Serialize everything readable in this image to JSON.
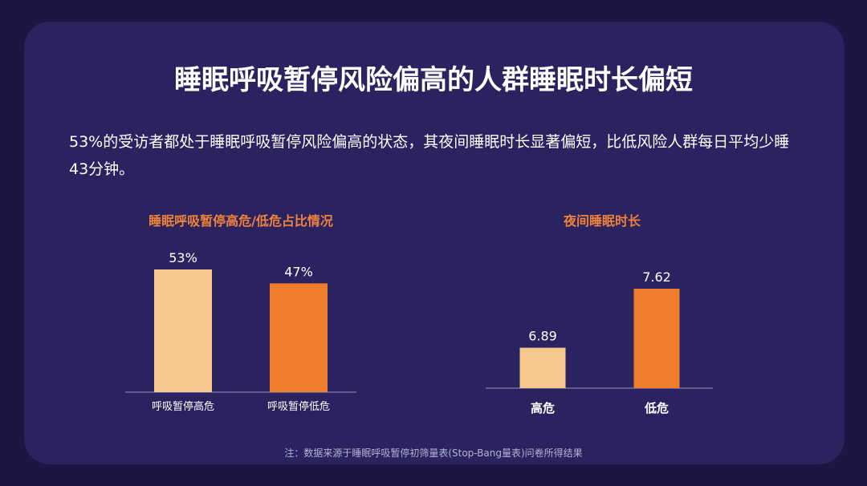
{
  "title": "睡眠呼吸暂停风险偏高的人群睡眠时长偏短",
  "description": "53%的受访者都处于睡眠呼吸暂停风险偏高的状态，其夜间睡眠时长显著偏短，比低风险人群每日平均少睡43分钟。",
  "note": "注：数据来源于睡眠呼吸暂停初筛量表(Stop-Bang量表)问卷所得结果",
  "colors": {
    "background": "#1c1642",
    "card": "#2a2360",
    "accent_orange": "#ee7d2e",
    "light_orange": "#f6c88f",
    "title_orange": "#f0823a"
  },
  "chart_data": [
    {
      "type": "bar",
      "title": "睡眠呼吸暂停高危/低危占比情况",
      "categories": [
        "呼吸暂停高危",
        "呼吸暂停低危"
      ],
      "values": [
        53,
        47
      ],
      "data_labels": [
        "53%",
        "47%"
      ],
      "colors": [
        "#f6c88f",
        "#ee7d2e"
      ],
      "ylim": [
        0,
        53
      ],
      "grid": false
    },
    {
      "type": "bar",
      "title": "夜间睡眠时长",
      "categories": [
        "高危",
        "低危"
      ],
      "values": [
        6.89,
        7.62
      ],
      "data_labels": [
        "6.89",
        "7.62"
      ],
      "colors": [
        "#f6c88f",
        "#ee7d2e"
      ],
      "ylim": [
        6.39,
        7.62
      ],
      "grid": false
    }
  ]
}
